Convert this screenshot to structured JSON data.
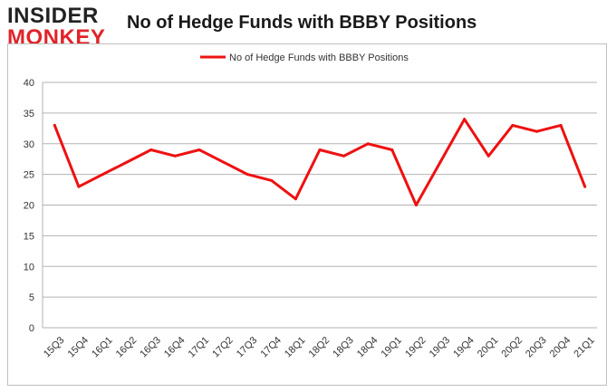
{
  "logo": {
    "line1": "INSIDER",
    "line2": "MONKEY"
  },
  "chart_data": {
    "type": "line",
    "title": "No of Hedge Funds with BBBY Positions",
    "xlabel": "",
    "ylabel": "",
    "categories": [
      "15Q3",
      "15Q4",
      "16Q1",
      "16Q2",
      "16Q3",
      "16Q4",
      "17Q1",
      "17Q2",
      "17Q3",
      "17Q4",
      "18Q1",
      "18Q2",
      "18Q3",
      "18Q4",
      "19Q1",
      "19Q2",
      "19Q3",
      "19Q4",
      "20Q1",
      "20Q2",
      "20Q3",
      "20Q4",
      "21Q1"
    ],
    "series": [
      {
        "name": "No of Hedge Funds with BBBY Positions",
        "color": "#ee1111",
        "values": [
          33,
          23,
          25,
          27,
          29,
          28,
          29,
          27,
          25,
          24,
          21,
          29,
          28,
          30,
          29,
          20,
          27,
          34,
          28,
          33,
          32,
          33,
          23
        ]
      }
    ],
    "ylim": [
      0,
      40
    ],
    "yticks": [
      0,
      5,
      10,
      15,
      20,
      25,
      30,
      35,
      40
    ],
    "grid": true,
    "legend_position": "top-center"
  }
}
